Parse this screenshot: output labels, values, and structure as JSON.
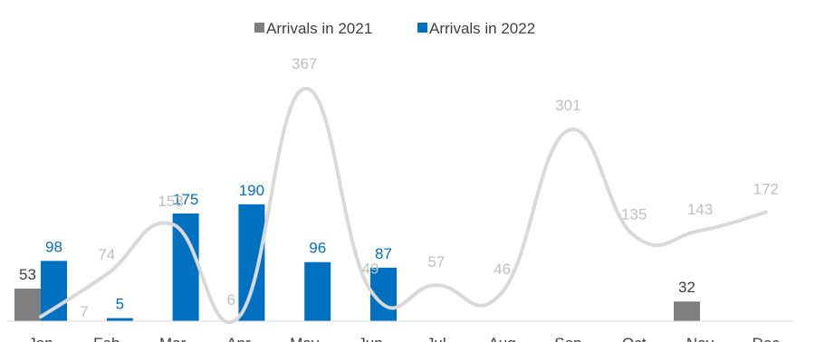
{
  "chart_data": {
    "type": "bar",
    "categories": [
      "Jan",
      "Feb",
      "Mar",
      "Apr",
      "May",
      "Jun",
      "Jul",
      "Aug",
      "Sep",
      "Oct",
      "Nov",
      "Dec"
    ],
    "series": [
      {
        "name": "Arrivals in 2021",
        "type": "bar",
        "color": "#7f7f7f",
        "values": [
          53,
          null,
          null,
          null,
          null,
          null,
          null,
          null,
          null,
          null,
          32,
          null
        ]
      },
      {
        "name": "Arrivals in 2022",
        "type": "bar",
        "color": "#0070c0",
        "values": [
          98,
          5,
          175,
          190,
          96,
          87,
          null,
          null,
          null,
          null,
          null,
          null
        ]
      },
      {
        "type": "line",
        "color": "#d9d9d9",
        "values": [
          7,
          74,
          153,
          6,
          367,
          49,
          57,
          46,
          301,
          135,
          143,
          172
        ]
      }
    ],
    "legend": "top-center",
    "grid": false
  }
}
